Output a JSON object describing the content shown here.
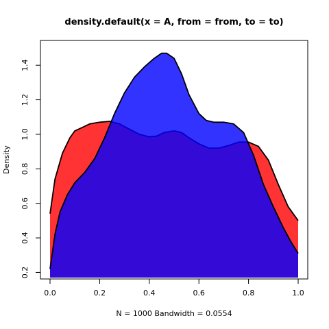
{
  "chart_data": {
    "type": "area",
    "title": "density.default(x = A, from = from, to = to)",
    "xlabel": "N = 1000   Bandwidth = 0.0554",
    "ylabel": "Density",
    "xlim": [
      0.0,
      1.0
    ],
    "ylim": [
      0.17,
      1.5
    ],
    "x_ticks": [
      "0.0",
      "0.2",
      "0.4",
      "0.6",
      "0.8",
      "1.0"
    ],
    "y_ticks": [
      "0.2",
      "0.4",
      "0.6",
      "0.8",
      "1.0",
      "1.2",
      "1.4"
    ],
    "grid": false,
    "legend": "none",
    "series": [
      {
        "color": "#ff0000",
        "opacity": 0.8,
        "x": [
          0.0,
          0.02,
          0.05,
          0.08,
          0.1,
          0.13,
          0.16,
          0.2,
          0.24,
          0.28,
          0.32,
          0.36,
          0.4,
          0.43,
          0.46,
          0.5,
          0.53,
          0.56,
          0.6,
          0.64,
          0.68,
          0.72,
          0.76,
          0.8,
          0.84,
          0.88,
          0.92,
          0.96,
          1.0
        ],
        "y": [
          0.54,
          0.74,
          0.89,
          0.98,
          1.02,
          1.04,
          1.06,
          1.07,
          1.075,
          1.06,
          1.03,
          1.0,
          0.985,
          0.99,
          1.01,
          1.02,
          1.01,
          0.98,
          0.945,
          0.92,
          0.92,
          0.935,
          0.955,
          0.955,
          0.93,
          0.85,
          0.71,
          0.58,
          0.5
        ]
      },
      {
        "color": "#0000ff",
        "opacity": 0.8,
        "x": [
          0.0,
          0.02,
          0.04,
          0.07,
          0.1,
          0.14,
          0.18,
          0.22,
          0.26,
          0.3,
          0.34,
          0.38,
          0.42,
          0.45,
          0.47,
          0.5,
          0.53,
          0.56,
          0.6,
          0.63,
          0.66,
          0.7,
          0.74,
          0.78,
          0.82,
          0.86,
          0.9,
          0.94,
          0.97,
          1.0
        ],
        "y": [
          0.22,
          0.42,
          0.55,
          0.65,
          0.72,
          0.78,
          0.86,
          0.98,
          1.12,
          1.24,
          1.33,
          1.39,
          1.44,
          1.47,
          1.47,
          1.44,
          1.35,
          1.23,
          1.12,
          1.08,
          1.07,
          1.07,
          1.06,
          1.01,
          0.88,
          0.71,
          0.58,
          0.46,
          0.38,
          0.31
        ]
      }
    ]
  }
}
